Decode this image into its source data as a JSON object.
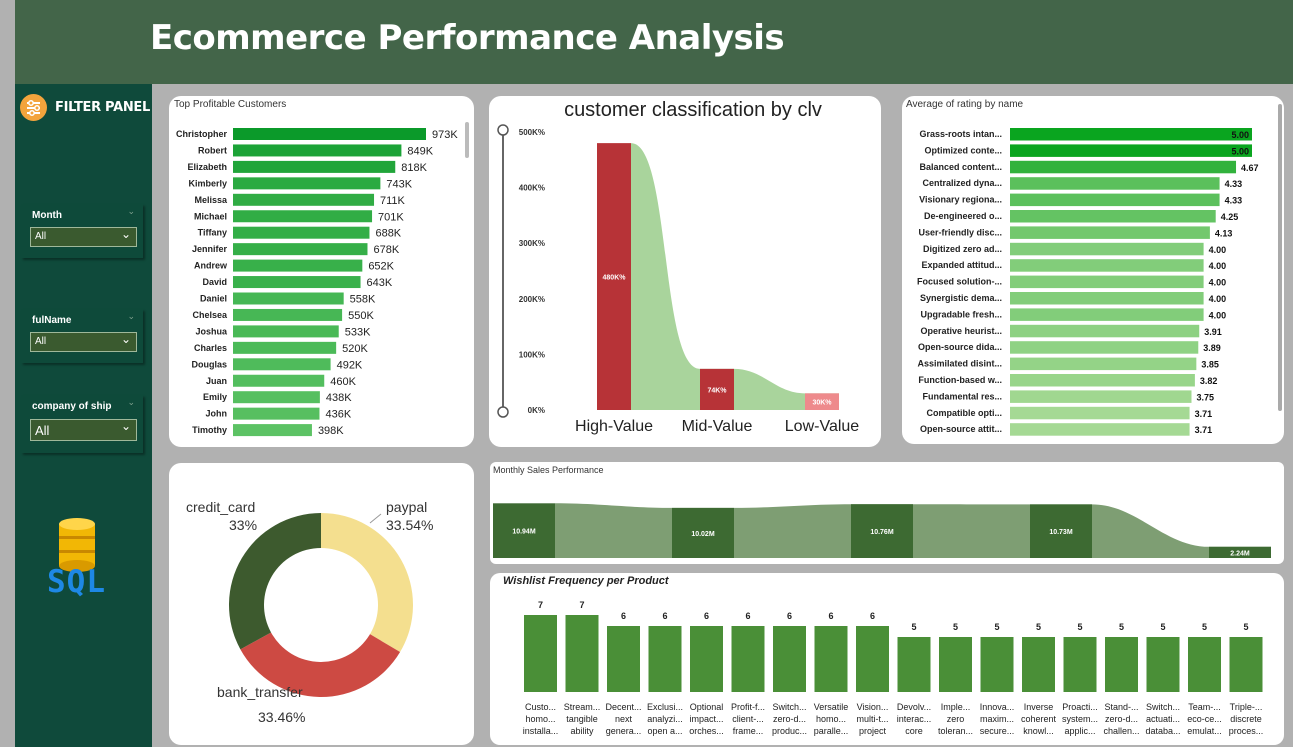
{
  "header": {
    "title": "Ecommerce Performance Analysis"
  },
  "sidebar": {
    "filter_panel_label": "FILTER PANEL",
    "slicers": [
      {
        "title": "Month",
        "value": "All"
      },
      {
        "title": "fulName",
        "value": "All"
      },
      {
        "title": "company of ship",
        "value": "All"
      }
    ],
    "sql_label": "SQL"
  },
  "colors": {
    "header": "#436549",
    "sidebar": "#0f4a3b",
    "accent": "#f3a43c",
    "bar_green": "#4caf50",
    "dark_green": "#3d5a2e",
    "red": "#cd4a43",
    "paypal": "#f4df8f"
  },
  "chart_data": [
    {
      "type": "bar",
      "title": "Top Profitable Customers",
      "orientation": "horizontal",
      "categories": [
        "Christopher",
        "Robert",
        "Elizabeth",
        "Kimberly",
        "Melissa",
        "Michael",
        "Tiffany",
        "Jennifer",
        "Andrew",
        "David",
        "Daniel",
        "Chelsea",
        "Joshua",
        "Charles",
        "Douglas",
        "Juan",
        "Emily",
        "John",
        "Timothy"
      ],
      "values": [
        973,
        849,
        818,
        743,
        711,
        701,
        688,
        678,
        652,
        643,
        558,
        550,
        533,
        520,
        492,
        460,
        438,
        436,
        398
      ],
      "labels": [
        "973K",
        "849K",
        "818K",
        "743K",
        "711K",
        "701K",
        "688K",
        "678K",
        "652K",
        "643K",
        "558K",
        "550K",
        "533K",
        "520K",
        "492K",
        "460K",
        "438K",
        "436K",
        "398K"
      ]
    },
    {
      "type": "bar",
      "title": "customer classification by clv",
      "categories": [
        "High-Value",
        "Mid-Value",
        "Low-Value"
      ],
      "values": [
        480,
        74,
        30
      ],
      "labels": [
        "480K%",
        "74K%",
        "30K%"
      ],
      "y_ticks": [
        "500K%",
        "400K%",
        "300K%",
        "200K%",
        "100K%",
        "0K%"
      ],
      "ylim": [
        0,
        500
      ]
    },
    {
      "type": "bar",
      "title": "Average of rating by name",
      "orientation": "horizontal",
      "categories": [
        "Grass-roots intan...",
        "Optimized conte...",
        "Balanced content...",
        "Centralized dyna...",
        "Visionary regiona...",
        "De-engineered o...",
        "User-friendly disc...",
        "Digitized zero ad...",
        "Expanded attitud...",
        "Focused solution-...",
        "Synergistic dema...",
        "Upgradable fresh...",
        "Operative heurist...",
        "Open-source dida...",
        "Assimilated disint...",
        "Function-based w...",
        "Fundamental res...",
        "Compatible opti...",
        "Open-source attit..."
      ],
      "values": [
        5.0,
        5.0,
        4.67,
        4.33,
        4.33,
        4.25,
        4.13,
        4.0,
        4.0,
        4.0,
        4.0,
        4.0,
        3.91,
        3.89,
        3.85,
        3.82,
        3.75,
        3.71,
        3.71
      ],
      "labels": [
        "5.00",
        "5.00",
        "4.67",
        "4.33",
        "4.33",
        "4.25",
        "4.13",
        "4.00",
        "4.00",
        "4.00",
        "4.00",
        "4.00",
        "3.91",
        "3.89",
        "3.85",
        "3.82",
        "3.75",
        "3.71",
        "3.71"
      ]
    },
    {
      "type": "pie",
      "subtype": "donut",
      "slices": [
        {
          "name": "paypal",
          "pct_label": "33.54%",
          "value": 33.54,
          "color": "#f4df8f"
        },
        {
          "name": "bank_transfer",
          "pct_label": "33.46%",
          "value": 33.46,
          "color": "#cd4a43"
        },
        {
          "name": "credit_card",
          "pct_label": "33%",
          "value": 33.0,
          "color": "#3d5a2e"
        }
      ]
    },
    {
      "type": "bar",
      "title": "Monthly Sales Performance",
      "values": [
        10.94,
        10.02,
        10.76,
        10.73,
        2.24
      ],
      "labels": [
        "10.94M",
        "10.02M",
        "10.76M",
        "10.73M",
        "2.24M"
      ],
      "ylim": [
        0,
        11
      ]
    },
    {
      "type": "bar",
      "title": "Wishlist Frequency per Product",
      "categories": [
        [
          "Custo...",
          "homo...",
          "installa..."
        ],
        [
          "Stream...",
          "tangible",
          "ability"
        ],
        [
          "Decent...",
          "next",
          "genera..."
        ],
        [
          "Exclusi...",
          "analyzi...",
          "open a..."
        ],
        [
          "Optional",
          "impact...",
          "orches..."
        ],
        [
          "Profit-f...",
          "client-...",
          "frame..."
        ],
        [
          "Switch...",
          "zero-d...",
          "produc..."
        ],
        [
          "Versatile",
          "homo...",
          "paralle..."
        ],
        [
          "Vision...",
          "multi-t...",
          "project"
        ],
        [
          "Devolv...",
          "interac...",
          "core"
        ],
        [
          "Imple...",
          "zero",
          "toleran..."
        ],
        [
          "Innova...",
          "maxim...",
          "secure..."
        ],
        [
          "Inverse",
          "coherent",
          "knowl..."
        ],
        [
          "Proacti...",
          "system...",
          "applic..."
        ],
        [
          "Stand-...",
          "zero-d...",
          "challen..."
        ],
        [
          "Switch...",
          "actuati...",
          "databa..."
        ],
        [
          "Team-...",
          "eco-ce...",
          "emulat..."
        ],
        [
          "Triple-...",
          "discrete",
          "proces..."
        ]
      ],
      "values": [
        7,
        7,
        6,
        6,
        6,
        6,
        6,
        6,
        6,
        5,
        5,
        5,
        5,
        5,
        5,
        5,
        5,
        5
      ],
      "ylim": [
        0,
        7
      ]
    }
  ]
}
